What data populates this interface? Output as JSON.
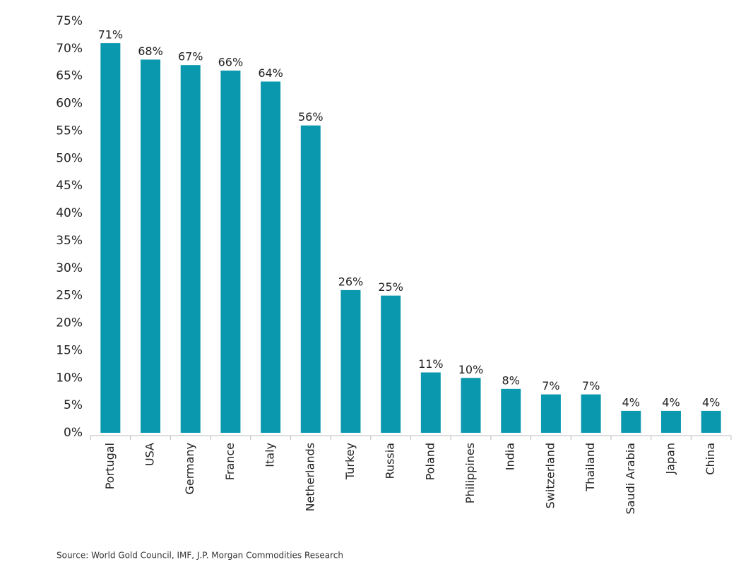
{
  "chart_data": {
    "type": "bar",
    "categories": [
      "Portugal",
      "USA",
      "Germany",
      "France",
      "Italy",
      "Netherlands",
      "Turkey",
      "Russia",
      "Poland",
      "Philippines",
      "India",
      "Switzerland",
      "Thailand",
      "Saudi Arabia",
      "Japan",
      "China"
    ],
    "values": [
      71,
      68,
      67,
      66,
      64,
      56,
      26,
      25,
      11,
      10,
      8,
      7,
      7,
      4,
      4,
      4
    ],
    "value_labels": [
      "71%",
      "68%",
      "67%",
      "66%",
      "64%",
      "56%",
      "26%",
      "25%",
      "11%",
      "10%",
      "8%",
      "7%",
      "7%",
      "4%",
      "4%",
      "4%"
    ],
    "color": "#0a98ae",
    "ylim": [
      0,
      75
    ],
    "yticks": [
      {
        "value": 0,
        "label": "0%"
      },
      {
        "value": 5,
        "label": "5%"
      },
      {
        "value": 10,
        "label": "10%"
      },
      {
        "value": 15,
        "label": "15%"
      },
      {
        "value": 20,
        "label": "20%"
      },
      {
        "value": 25,
        "label": "25%"
      },
      {
        "value": 30,
        "label": "30%"
      },
      {
        "value": 35,
        "label": "35%"
      },
      {
        "value": 40,
        "label": "40%"
      },
      {
        "value": 45,
        "label": "45%"
      },
      {
        "value": 50,
        "label": "50%"
      },
      {
        "value": 55,
        "label": "55%"
      },
      {
        "value": 60,
        "label": "60%"
      },
      {
        "value": 65,
        "label": "65%"
      },
      {
        "value": 70,
        "label": "70%"
      },
      {
        "value": 75,
        "label": "75%"
      }
    ],
    "grid": false,
    "source": "Source: World Gold Council, IMF, J.P. Morgan Commodities Research"
  }
}
